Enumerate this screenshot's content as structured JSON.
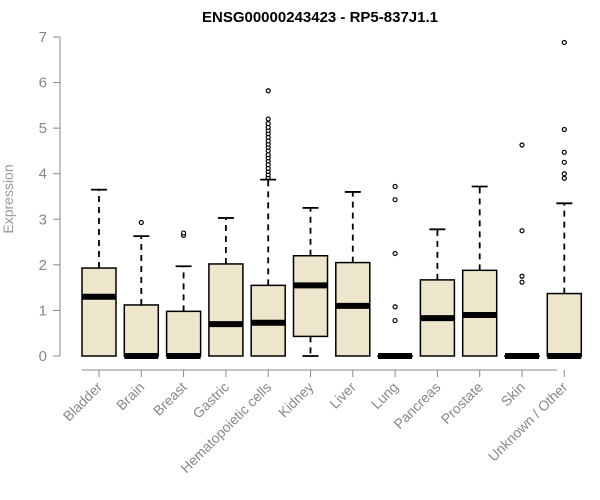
{
  "chart_data": {
    "type": "box",
    "title": "ENSG00000243423 - RP5-837J1.1",
    "xlabel": "",
    "ylabel": "Expression",
    "ylim": [
      0,
      7
    ],
    "yticks": [
      0,
      1,
      2,
      3,
      4,
      5,
      6,
      7
    ],
    "categories": [
      "Bladder",
      "Brain",
      "Breast",
      "Gastric",
      "Hematopoietic cells",
      "Kidney",
      "Liver",
      "Lung",
      "Pancreas",
      "Prostate",
      "Skin",
      "Unknown / Other"
    ],
    "boxes": [
      {
        "q1": 0.0,
        "median": 1.3,
        "q3": 1.93,
        "whisker_low": 0.0,
        "whisker_high": 3.65,
        "outliers": []
      },
      {
        "q1": 0.0,
        "median": 0.0,
        "q3": 1.12,
        "whisker_low": 0.0,
        "whisker_high": 2.63,
        "outliers": [
          2.93
        ]
      },
      {
        "q1": 0.0,
        "median": 0.0,
        "q3": 0.98,
        "whisker_low": 0.0,
        "whisker_high": 1.97,
        "outliers": [
          2.65,
          2.7
        ]
      },
      {
        "q1": 0.0,
        "median": 0.7,
        "q3": 2.02,
        "whisker_low": 0.0,
        "whisker_high": 3.03,
        "outliers": []
      },
      {
        "q1": 0.0,
        "median": 0.73,
        "q3": 1.55,
        "whisker_low": 0.0,
        "whisker_high": 3.87,
        "outliers": [
          3.92,
          3.98,
          4.05,
          4.12,
          4.2,
          4.28,
          4.35,
          4.42,
          4.5,
          4.58,
          4.65,
          4.72,
          4.8,
          4.88,
          4.95,
          5.02,
          5.1,
          5.2,
          5.82
        ]
      },
      {
        "q1": 0.43,
        "median": 1.55,
        "q3": 2.2,
        "whisker_low": 0.0,
        "whisker_high": 3.25,
        "outliers": []
      },
      {
        "q1": 0.0,
        "median": 1.1,
        "q3": 2.05,
        "whisker_low": 0.0,
        "whisker_high": 3.6,
        "outliers": []
      },
      {
        "q1": 0.0,
        "median": 0.0,
        "q3": 0.0,
        "whisker_low": 0.0,
        "whisker_high": 0.0,
        "outliers": [
          0.78,
          1.08,
          2.25,
          3.43,
          3.72
        ]
      },
      {
        "q1": 0.0,
        "median": 0.83,
        "q3": 1.67,
        "whisker_low": 0.0,
        "whisker_high": 2.78,
        "outliers": []
      },
      {
        "q1": 0.0,
        "median": 0.9,
        "q3": 1.88,
        "whisker_low": 0.0,
        "whisker_high": 3.72,
        "outliers": []
      },
      {
        "q1": 0.0,
        "median": 0.0,
        "q3": 0.0,
        "whisker_low": 0.0,
        "whisker_high": 0.0,
        "outliers": [
          1.62,
          1.75,
          2.75,
          4.63
        ]
      },
      {
        "q1": 0.0,
        "median": 0.0,
        "q3": 1.37,
        "whisker_low": 0.0,
        "whisker_high": 3.35,
        "outliers": [
          3.9,
          4.0,
          4.25,
          4.47,
          4.97,
          6.88
        ]
      }
    ],
    "box_fill": "#eee6cc",
    "axis_color": "#888888",
    "grid": false,
    "legend": "none"
  }
}
